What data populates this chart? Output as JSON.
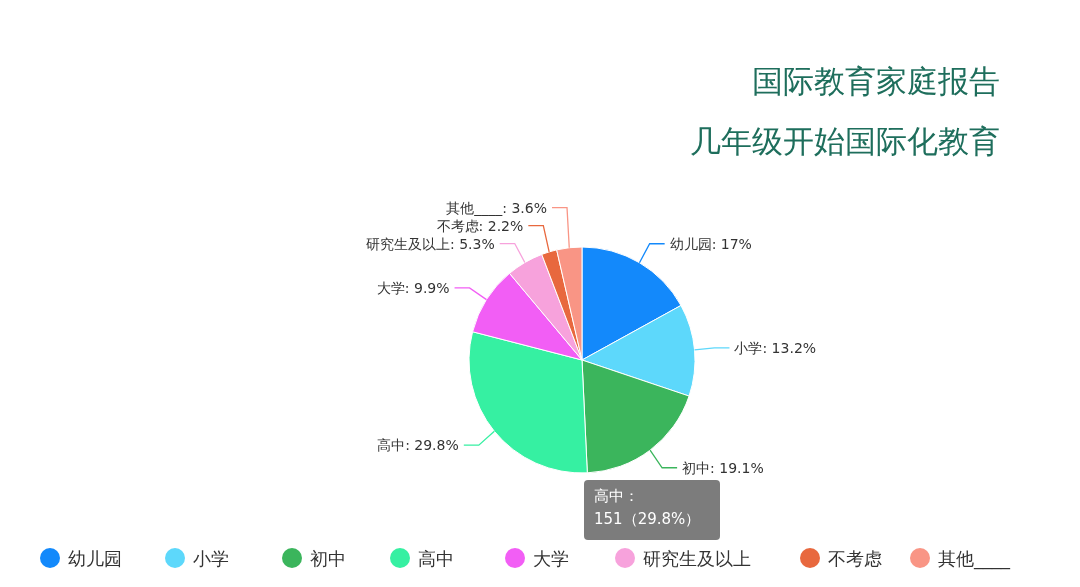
{
  "chart_data": {
    "type": "pie",
    "title": "国际教育家庭报告",
    "subtitle": "几年级开始国际化教育",
    "categories": [
      "幼儿园",
      "小学",
      "初中",
      "高中",
      "大学",
      "研究生及以上",
      "不考虑",
      "其他____"
    ],
    "values": [
      17,
      13.2,
      19.1,
      29.8,
      9.9,
      5.3,
      2.2,
      3.6
    ],
    "colors": [
      "#1389fb",
      "#5dd8fb",
      "#3bb55c",
      "#36f0a2",
      "#f25ef5",
      "#f7a2dc",
      "#e8683e",
      "#f99585"
    ],
    "value_labels": [
      "幼儿园: 17%",
      "小学: 13.2%",
      "初中: 19.1%",
      "高中: 29.8%",
      "大学: 9.9%",
      "研究生及以上: 5.3%",
      "不考虑: 2.2%",
      "其他____: 3.6%"
    ],
    "annotations": [
      "高中：\n151（29.8%）"
    ],
    "legend": "bottom"
  }
}
